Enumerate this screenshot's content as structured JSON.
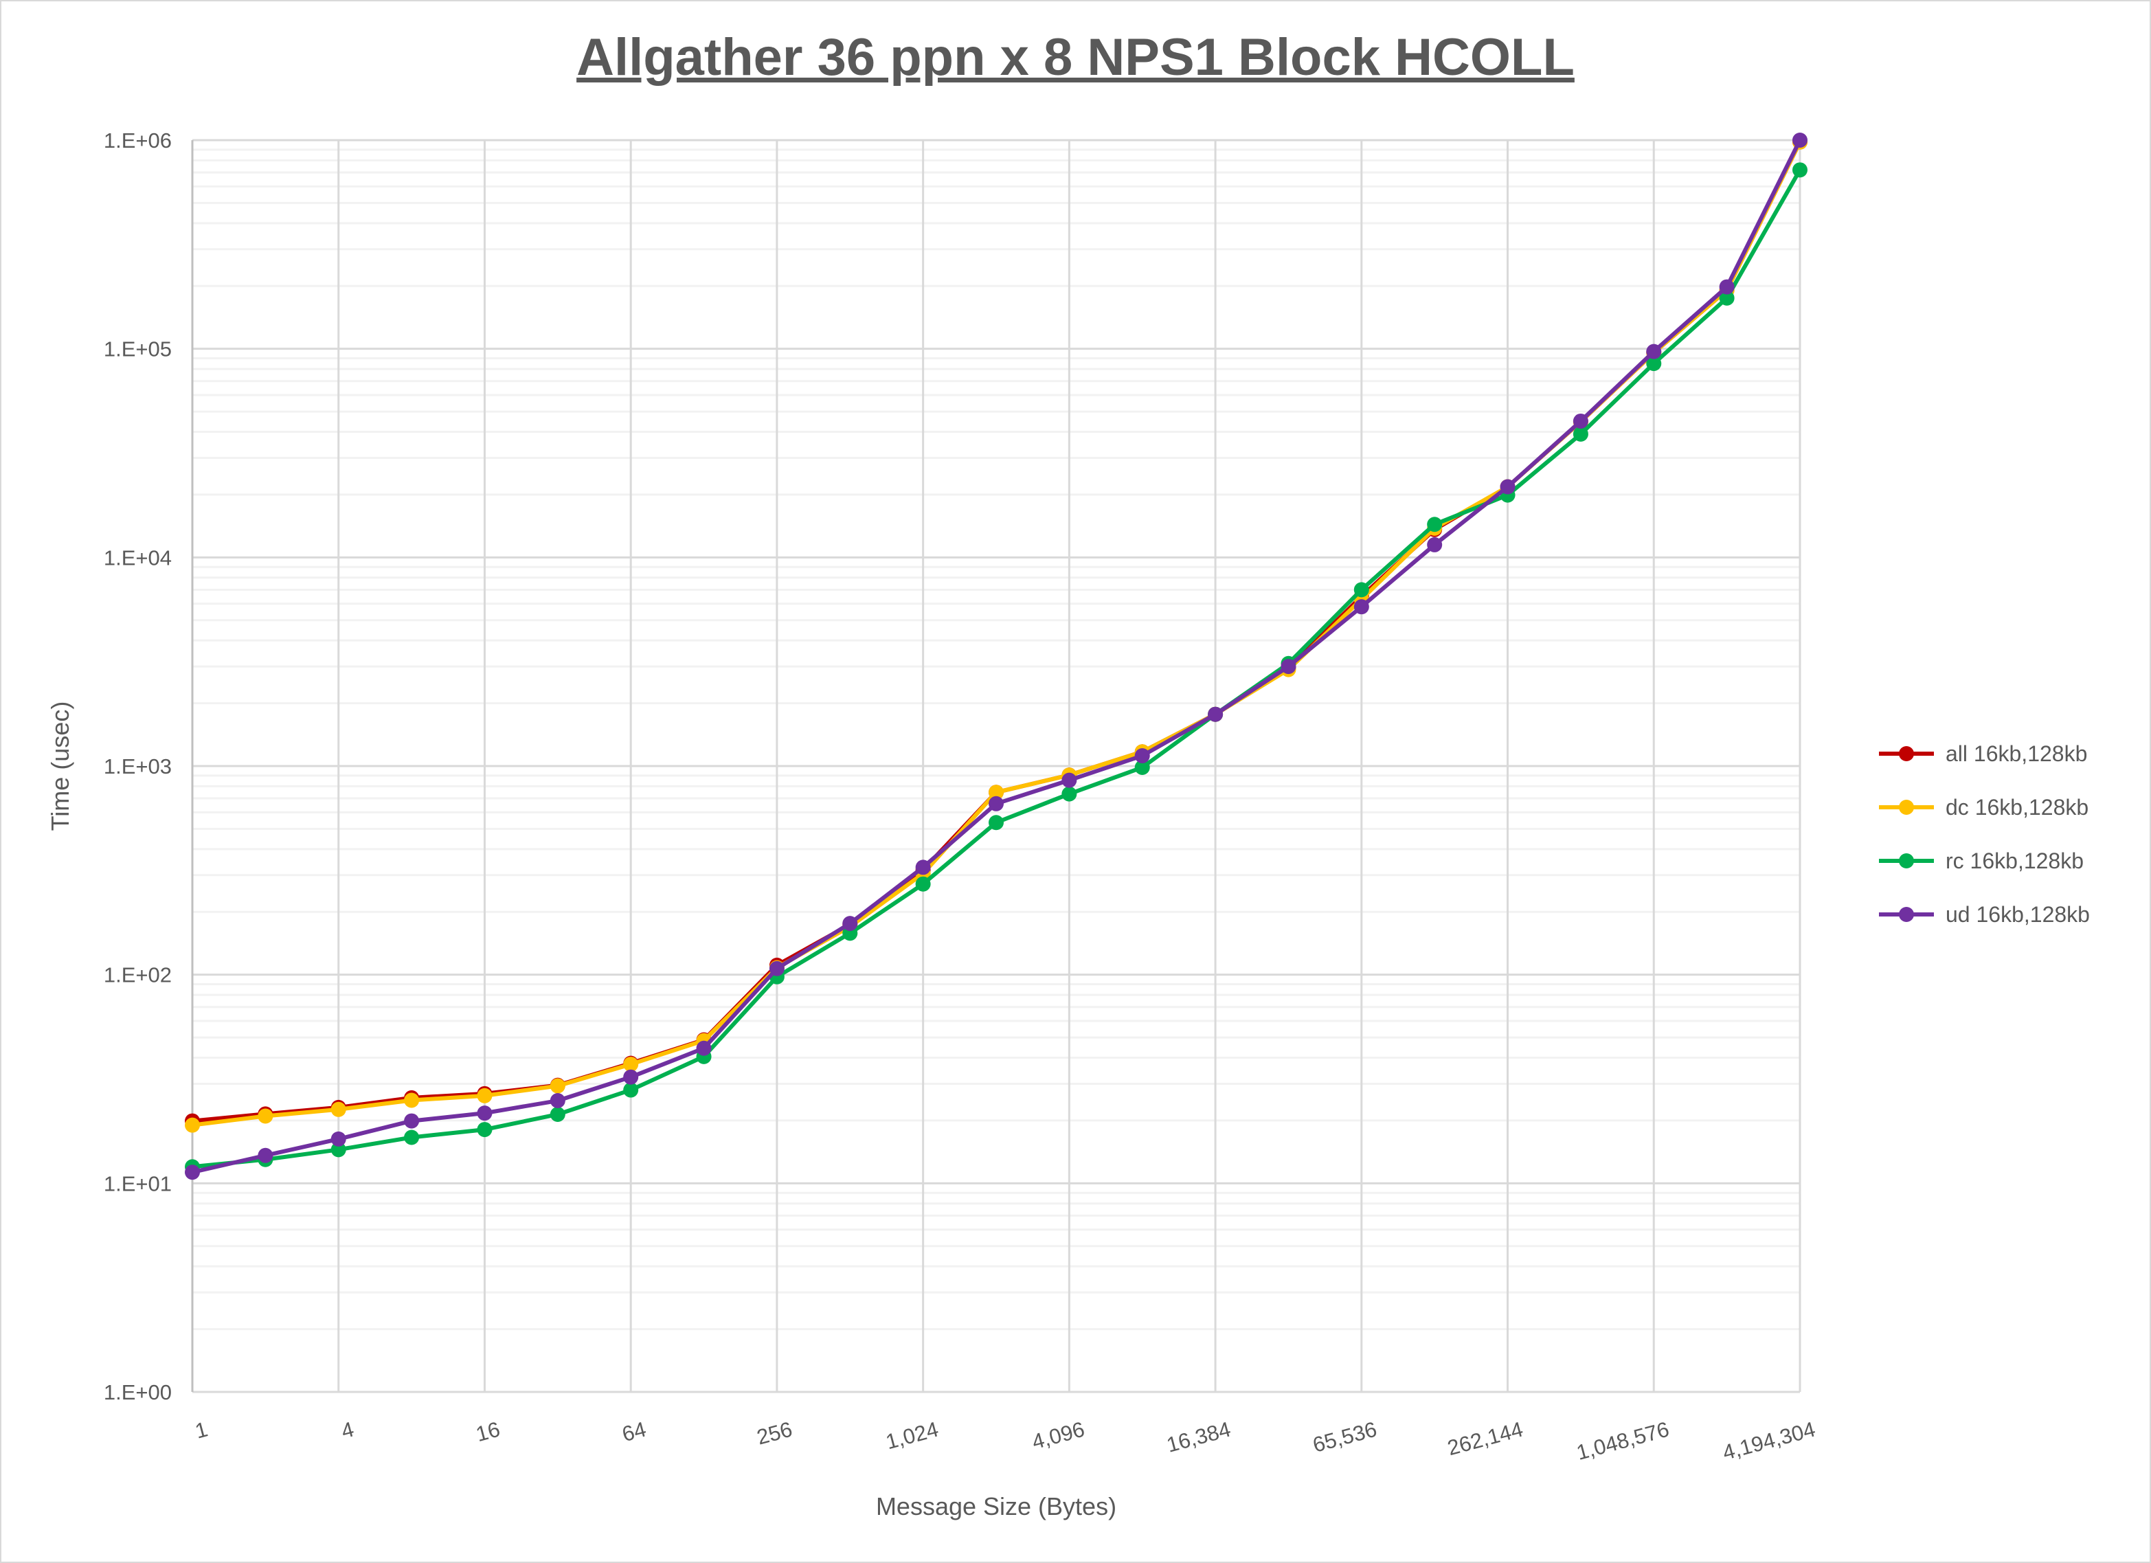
{
  "chart_data": {
    "type": "line",
    "title": "Allgather 36 ppn x 8 NPS1 Block HCOLL",
    "xlabel": "Message Size (Bytes)",
    "ylabel": "Time (usec)",
    "x_scale": "log2",
    "y_scale": "log10",
    "ylim": [
      1,
      1000000
    ],
    "y_tick_labels": [
      "1.E+00",
      "1.E+01",
      "1.E+02",
      "1.E+03",
      "1.E+04",
      "1.E+05",
      "1.E+06"
    ],
    "x_tick_labels": [
      "1",
      "4",
      "16",
      "64",
      "256",
      "1,024",
      "4,096",
      "16,384",
      "65,536",
      "262,144",
      "1,048,576",
      "4,194,304"
    ],
    "x": [
      1,
      2,
      4,
      8,
      16,
      32,
      64,
      128,
      256,
      512,
      1024,
      2048,
      4096,
      8192,
      16384,
      32768,
      65536,
      131072,
      262144,
      524288,
      1048576,
      2097152,
      4194304
    ],
    "grid": true,
    "legend_position": "right",
    "series": [
      {
        "name": "all 16kb,128kb",
        "color": "#c00000",
        "values": [
          19.9,
          21.5,
          23.1,
          25.7,
          26.9,
          29.5,
          37.6,
          48.7,
          111,
          174,
          318,
          748,
          905,
          1170,
          1770,
          2960,
          6500,
          13600,
          21800,
          44700,
          95700,
          191000,
          980000
        ]
      },
      {
        "name": "dc 16kb,128kb",
        "color": "#ffc000",
        "values": [
          19,
          21,
          22.6,
          25,
          26.3,
          29.3,
          37.2,
          48.3,
          108,
          170,
          305,
          748,
          905,
          1170,
          1770,
          2900,
          6300,
          13800,
          21800,
          44700,
          95700,
          191000,
          980000
        ]
      },
      {
        "name": "rc 16kb,128kb",
        "color": "#00b050",
        "values": [
          12,
          13,
          14.5,
          16.6,
          18.1,
          21.4,
          28,
          40.5,
          97.7,
          158,
          272,
          536,
          735,
          985,
          1770,
          3100,
          7000,
          14400,
          19900,
          39000,
          85000,
          175000,
          720000
        ]
      },
      {
        "name": "ud 16kb,128kb",
        "color": "#7030a0",
        "values": [
          11.3,
          13.6,
          16.3,
          19.9,
          21.7,
          24.9,
          32.3,
          44.4,
          107,
          176,
          327,
          660,
          855,
          1120,
          1770,
          3000,
          5800,
          11500,
          21800,
          45000,
          97000,
          198000,
          1000000
        ]
      }
    ]
  }
}
